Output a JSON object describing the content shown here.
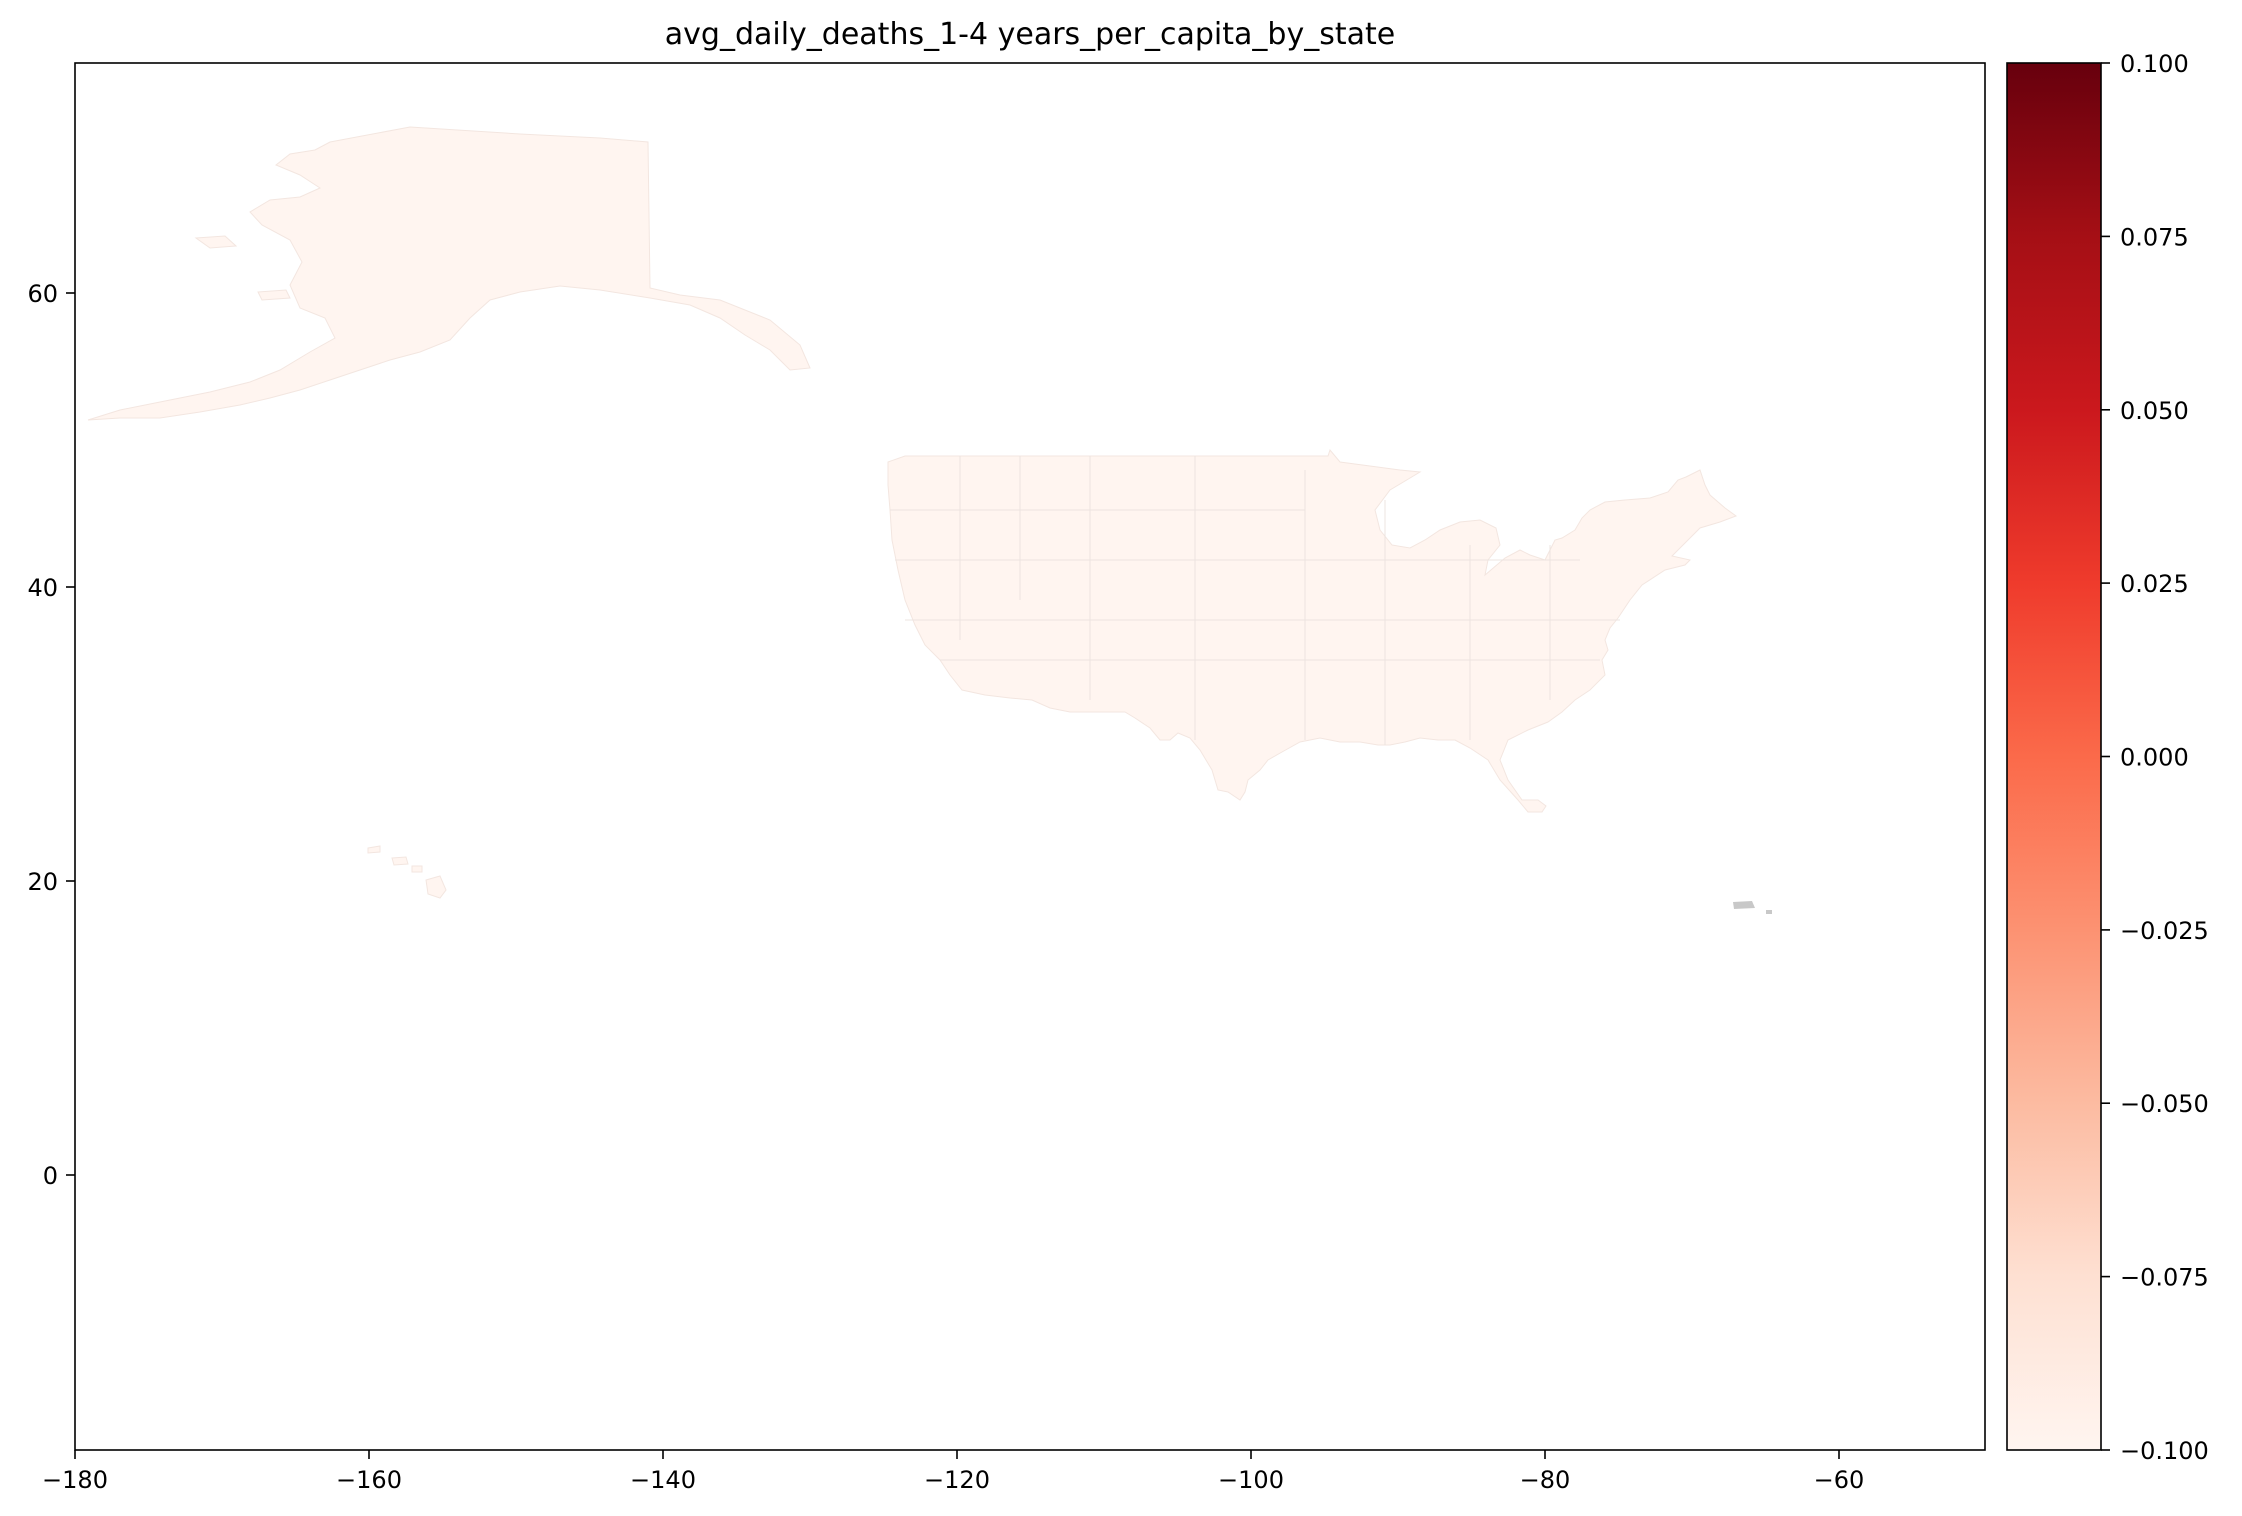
{
  "title": "avg_daily_deaths_1-4 years_per_capita_by_state",
  "map": {
    "x_ticks": [
      "−180",
      "−160",
      "−140",
      "−120",
      "−100",
      "−80",
      "−60"
    ],
    "y_ticks": [
      "60",
      "40",
      "20",
      "0"
    ],
    "fill_color": "#fff5f0",
    "nodata_color": "#c8c8c8"
  },
  "colorbar": {
    "ticks": [
      "0.100",
      "0.075",
      "0.050",
      "0.025",
      "0.000",
      "−0.025",
      "−0.050",
      "−0.075",
      "−0.100"
    ],
    "colormap": "Reds",
    "stops": [
      "#fff5f0",
      "#fee0d2",
      "#fcbba1",
      "#fc9272",
      "#fb6a4a",
      "#ef3b2c",
      "#cb181d",
      "#a50f15",
      "#67000d"
    ]
  }
}
